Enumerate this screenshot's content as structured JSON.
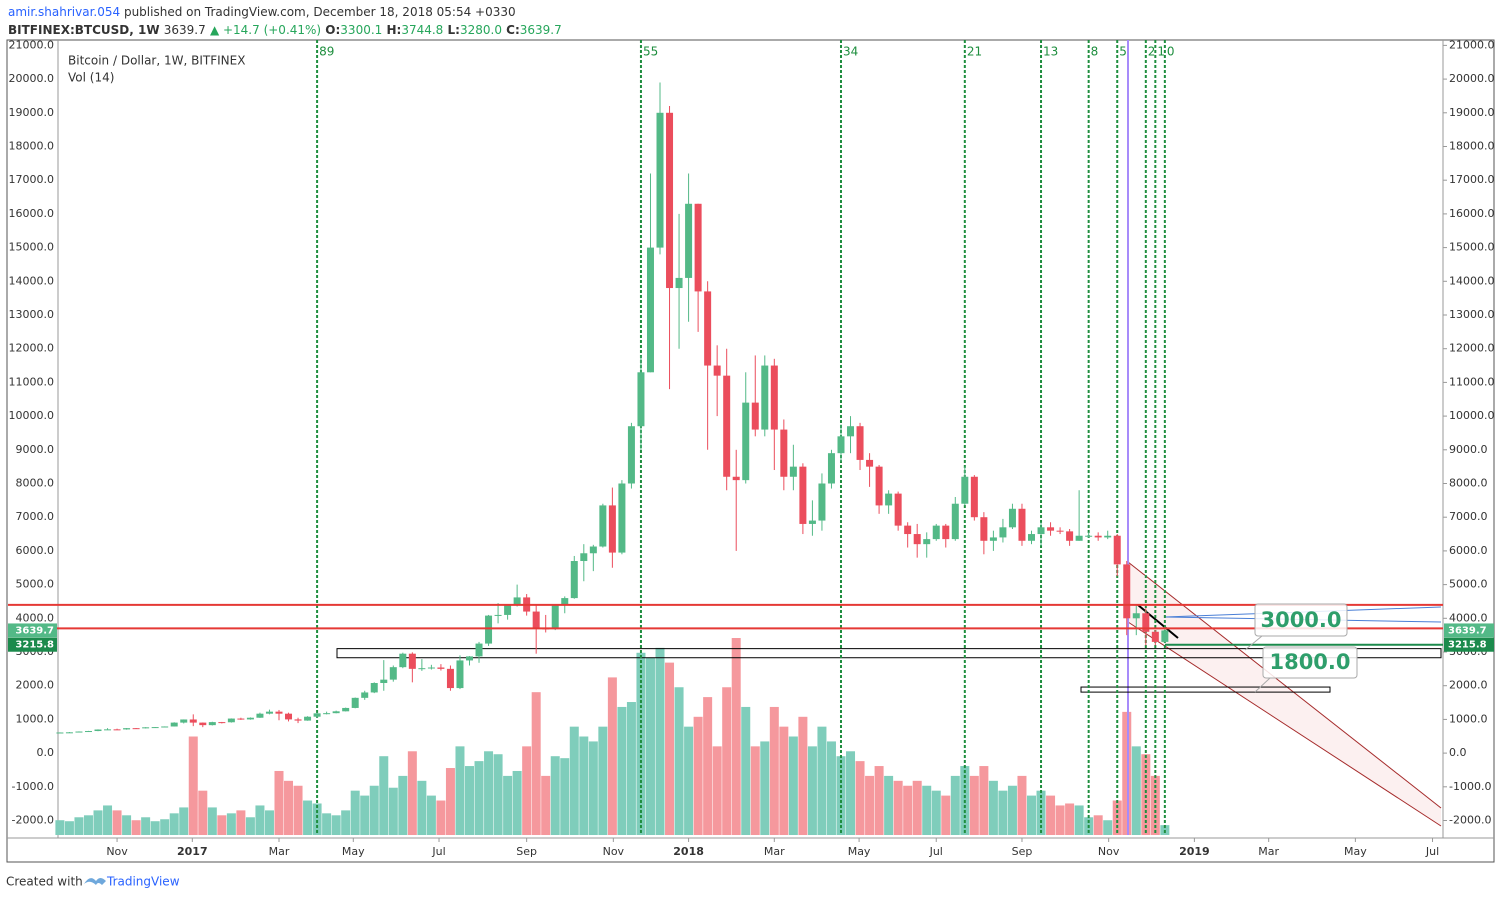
{
  "header": {
    "byline_user": "amir.shahrivar.054",
    "byline": "published on TradingView.com, December 18, 2018 05:54 +0330",
    "symbol": "BITFINEX:BTCUSD, 1W",
    "last": "3639.7",
    "change": "▲ +14.7 (+0.41%)",
    "ohlc": [
      {
        "key": "O:",
        "value": "3300.1"
      },
      {
        "key": "H:",
        "value": "3744.8"
      },
      {
        "key": "L:",
        "value": "3280.0"
      },
      {
        "key": "C:",
        "value": "3639.7"
      }
    ]
  },
  "footer": {
    "created": "Created with",
    "brand": "TradingView"
  },
  "chart_data": {
    "type": "candlestick",
    "legend": [
      "Bitcoin / Dollar, 1W, BITFINEX",
      "Vol (14)"
    ],
    "up_color": "#53b987",
    "down_color": "#eb4d5c",
    "vol_up_color": "#7fcdbb",
    "vol_down_color": "#f5989d",
    "open": [
      602,
      612,
      617,
      640,
      655,
      700,
      705,
      703,
      740,
      735,
      765,
      772,
      790,
      905,
      998,
      905,
      830,
      920,
      915,
      1025,
      1000,
      1050,
      1170,
      1230,
      1170,
      1000,
      965,
      1080,
      1180,
      1185,
      1240,
      1340,
      1640,
      1800,
      2080,
      2180,
      2550,
      2950,
      2500,
      2520,
      2540,
      2500,
      1930,
      2750,
      2870,
      3250,
      4080,
      4100,
      4380,
      4620,
      4200,
      3700,
      3680,
      4390,
      4600,
      5700,
      5930,
      6130,
      7350,
      5950,
      8000,
      9700,
      11300,
      15000,
      19000,
      13800,
      14100,
      16300,
      13700,
      11500,
      11200,
      8200,
      8100,
      10400,
      9600,
      11500,
      9600,
      8200,
      8500,
      6800,
      6900,
      8000,
      8900,
      9400,
      9700,
      8700,
      8500,
      7350,
      7700,
      6750,
      6500,
      6200,
      6350,
      6750,
      6350,
      7400,
      8200,
      7000,
      6300,
      6400,
      6700,
      7250,
      6300,
      6500,
      6700,
      6600,
      6580,
      6300,
      6450,
      6450,
      6400,
      6450,
      5600,
      4000,
      4150,
      3600,
      3300.1
    ],
    "high": [
      615,
      625,
      645,
      660,
      705,
      740,
      725,
      745,
      745,
      770,
      775,
      792,
      915,
      1000,
      1150,
      910,
      930,
      925,
      1030,
      1050,
      1060,
      1200,
      1290,
      1280,
      1200,
      1050,
      1095,
      1200,
      1230,
      1260,
      1350,
      1650,
      1850,
      2100,
      2760,
      2600,
      2980,
      2990,
      2790,
      2620,
      2640,
      2600,
      2900,
      2880,
      3300,
      4100,
      4450,
      4400,
      5000,
      4720,
      4400,
      4100,
      4420,
      4650,
      5850,
      6200,
      6180,
      7400,
      7880,
      8100,
      9800,
      11800,
      17200,
      19900,
      19200,
      16000,
      17200,
      16300,
      14000,
      12100,
      12000,
      9000,
      11300,
      11800,
      11800,
      11700,
      9900,
      9150,
      8600,
      7500,
      8300,
      9000,
      9750,
      10000,
      9800,
      8900,
      8550,
      7800,
      7760,
      6850,
      6800,
      6550,
      6800,
      6800,
      7600,
      8500,
      8250,
      7150,
      6600,
      6950,
      7400,
      7400,
      6600,
      6850,
      6850,
      6700,
      6650,
      7800,
      6550,
      6550,
      6600,
      6500,
      5700,
      4400,
      4300,
      3650,
      3744.8
    ],
    "low": [
      598,
      605,
      612,
      628,
      650,
      685,
      690,
      695,
      720,
      730,
      755,
      765,
      788,
      880,
      800,
      770,
      820,
      880,
      905,
      985,
      990,
      1045,
      1150,
      975,
      940,
      890,
      960,
      1040,
      1150,
      1180,
      1235,
      1330,
      1580,
      1780,
      1850,
      2120,
      2520,
      2100,
      2440,
      2480,
      2450,
      1850,
      1900,
      2600,
      2680,
      3180,
      3850,
      3960,
      4350,
      4080,
      2950,
      3580,
      3650,
      4150,
      4580,
      5100,
      5400,
      6100,
      5500,
      5900,
      7850,
      9000,
      11300,
      14800,
      10800,
      12000,
      12800,
      12500,
      9000,
      10000,
      7800,
      6000,
      8000,
      9400,
      9400,
      8400,
      7800,
      7800,
      6500,
      6450,
      6600,
      7850,
      8650,
      8900,
      8400,
      7900,
      7100,
      7100,
      6600,
      6100,
      5800,
      5800,
      6300,
      6100,
      6300,
      7350,
      6900,
      5900,
      6000,
      6250,
      6650,
      6150,
      6200,
      6150,
      6450,
      6500,
      6150,
      6300,
      6400,
      6300,
      6350,
      5250,
      3500,
      3500,
      3200,
      3200,
      3280
    ],
    "close": [
      612,
      617,
      640,
      655,
      700,
      705,
      703,
      740,
      735,
      765,
      772,
      790,
      905,
      998,
      905,
      830,
      920,
      915,
      1025,
      1000,
      1050,
      1170,
      1230,
      1170,
      1000,
      965,
      1080,
      1180,
      1185,
      1240,
      1340,
      1640,
      1800,
      2080,
      2180,
      2550,
      2950,
      2500,
      2520,
      2540,
      2500,
      1930,
      2750,
      2870,
      3250,
      4080,
      4100,
      4380,
      4620,
      4200,
      3700,
      3680,
      4390,
      4600,
      5700,
      5930,
      6130,
      7350,
      5950,
      8000,
      9700,
      11300,
      15000,
      19000,
      13800,
      14100,
      16300,
      13700,
      11500,
      11200,
      8200,
      8100,
      10400,
      9600,
      11500,
      9600,
      8200,
      8500,
      6800,
      6900,
      8000,
      8900,
      9400,
      9700,
      8700,
      8500,
      7350,
      7700,
      6750,
      6500,
      6200,
      6350,
      6750,
      6350,
      7400,
      8200,
      7000,
      6300,
      6400,
      6700,
      7250,
      6300,
      6500,
      6700,
      6600,
      6580,
      6300,
      6450,
      6450,
      6400,
      6450,
      5600,
      4000,
      4150,
      3600,
      3300,
      3639.7
    ],
    "volume": [
      15,
      14,
      18,
      20,
      25,
      30,
      25,
      20,
      15,
      18,
      14,
      16,
      22,
      28,
      100,
      45,
      28,
      20,
      22,
      25,
      18,
      30,
      25,
      65,
      55,
      50,
      35,
      32,
      22,
      20,
      25,
      45,
      40,
      50,
      80,
      48,
      60,
      85,
      55,
      40,
      35,
      68,
      90,
      70,
      75,
      85,
      82,
      60,
      65,
      90,
      145,
      60,
      80,
      78,
      110,
      100,
      95,
      110,
      160,
      130,
      135,
      185,
      180,
      190,
      175,
      150,
      110,
      120,
      140,
      90,
      150,
      200,
      130,
      90,
      95,
      130,
      110,
      100,
      120,
      90,
      110,
      95,
      80,
      85,
      75,
      60,
      70,
      60,
      55,
      50,
      55,
      50,
      45,
      40,
      60,
      70,
      60,
      70,
      55,
      45,
      50,
      60,
      40,
      45,
      40,
      30,
      32,
      30,
      18,
      20,
      15,
      35,
      125,
      90,
      82,
      60,
      10
    ],
    "xlim": [
      -0.2,
      145.2
    ],
    "xticks": [
      {
        "value": 6.0,
        "label": "Nov"
      },
      {
        "value": 13.9,
        "label": "2017"
      },
      {
        "value": 23.0,
        "label": "Mar"
      },
      {
        "value": 30.8,
        "label": "May"
      },
      {
        "value": 39.8,
        "label": "Jul"
      },
      {
        "value": 49.0,
        "label": "Sep"
      },
      {
        "value": 58.1,
        "label": "Nov"
      },
      {
        "value": 66.0,
        "label": "2018"
      },
      {
        "value": 75.0,
        "label": "Mar"
      },
      {
        "value": 83.9,
        "label": "May"
      },
      {
        "value": 92.0,
        "label": "Jul"
      },
      {
        "value": 101.0,
        "label": "Sep"
      },
      {
        "value": 110.1,
        "label": "Nov"
      },
      {
        "value": 119.1,
        "label": "2019"
      },
      {
        "value": 126.9,
        "label": "Mar"
      },
      {
        "value": 136.0,
        "label": "May"
      },
      {
        "value": 144.1,
        "label": "Jul"
      }
    ],
    "ylim": [
      -2430,
      21160
    ],
    "yticks": [
      {
        "value": -2000,
        "label": "-2000.0"
      },
      {
        "value": -1000,
        "label": "-1000.0"
      },
      {
        "value": 0,
        "label": "0.0"
      },
      {
        "value": 1000,
        "label": "1000.0"
      },
      {
        "value": 2000,
        "label": "2000.0"
      },
      {
        "value": 3000,
        "label": "3000.0"
      },
      {
        "value": 4000,
        "label": "4000.0"
      },
      {
        "value": 5000,
        "label": "5000.0"
      },
      {
        "value": 6000,
        "label": "6000.0"
      },
      {
        "value": 7000,
        "label": "7000.0"
      },
      {
        "value": 8000,
        "label": "8000.0"
      },
      {
        "value": 9000,
        "label": "9000.0"
      },
      {
        "value": 10000,
        "label": "10000.0"
      },
      {
        "value": 11000,
        "label": "11000.0"
      },
      {
        "value": 12000,
        "label": "12000.0"
      },
      {
        "value": 13000,
        "label": "13000.0"
      },
      {
        "value": 14000,
        "label": "14000.0"
      },
      {
        "value": 15000,
        "label": "15000.0"
      },
      {
        "value": 16000,
        "label": "16000.0"
      },
      {
        "value": 17000,
        "label": "17000.0"
      },
      {
        "value": 18000,
        "label": "18000.0"
      },
      {
        "value": 19000,
        "label": "19000.0"
      },
      {
        "value": 20000,
        "label": "20000.0"
      },
      {
        "value": 21000,
        "label": "21000.0"
      }
    ],
    "hlines": [
      4400,
      3700
    ],
    "hline_color": "#e53935",
    "ranges": [
      {
        "from": 2830,
        "to": 3100
      },
      {
        "from": 1810,
        "to": 1960
      }
    ],
    "fib_time_zones": [
      89,
      55,
      34,
      21,
      13,
      8,
      5,
      2,
      1,
      0
    ],
    "fib_color": "#1e8e3e",
    "price_labels": [
      3639.7,
      3215.8
    ],
    "price_label_colors": [
      "#53b987",
      "#1b8a4c"
    ],
    "callouts": [
      "3000.0",
      "1800.0"
    ]
  }
}
